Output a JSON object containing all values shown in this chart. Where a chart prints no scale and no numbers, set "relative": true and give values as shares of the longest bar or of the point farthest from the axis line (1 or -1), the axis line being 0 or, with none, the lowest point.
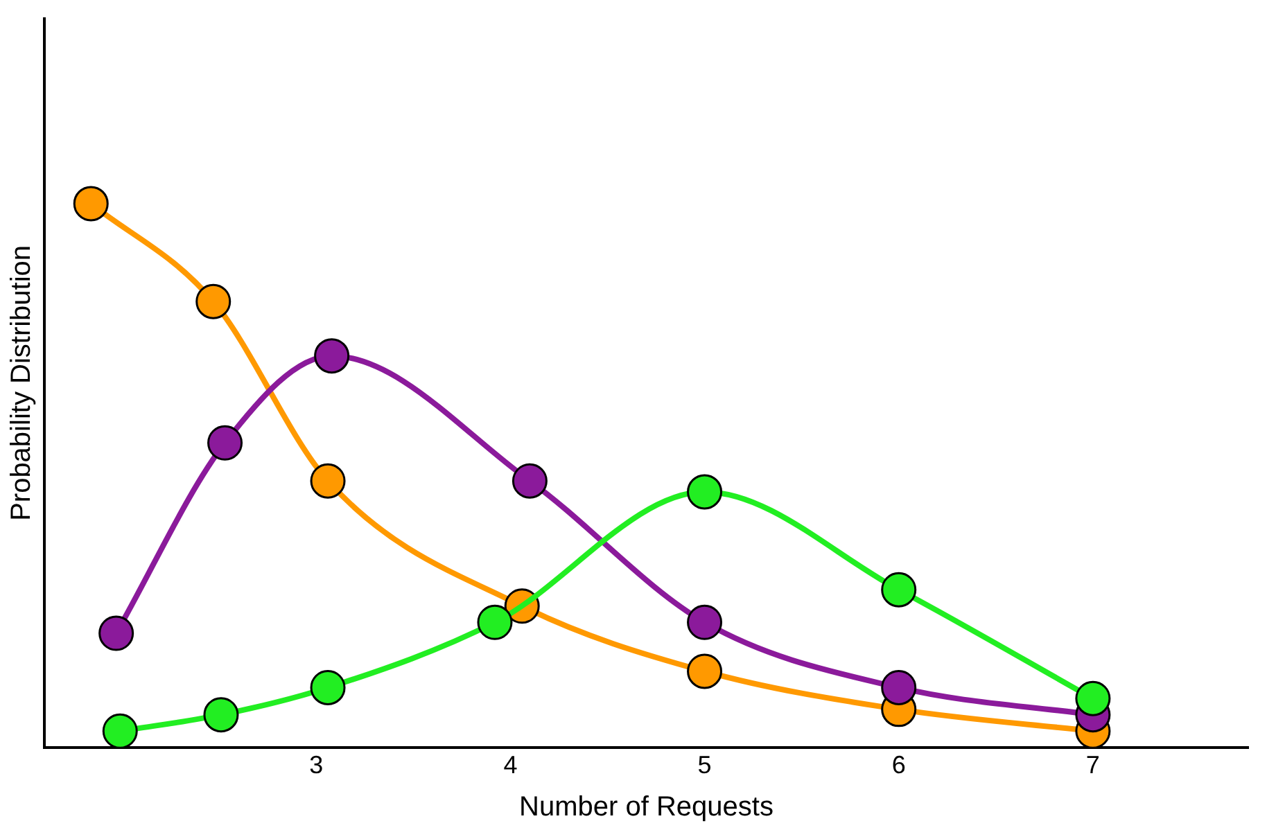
{
  "chart_data": {
    "type": "line",
    "xlabel": "Number of Requests",
    "ylabel": "Probability Distribution",
    "relative": true,
    "xlim": [
      1.6,
      7.8
    ],
    "xticks": [
      3,
      4,
      5,
      6,
      7
    ],
    "tick_labels": "x",
    "grid": false,
    "legend": false,
    "marker": "circle",
    "line_style": "solid",
    "series": [
      {
        "color": "#ff9900",
        "x": [
          1.84,
          2.47,
          3.06,
          4.06,
          5,
          6,
          7
        ],
        "values": [
          1,
          0.82,
          0.49,
          0.26,
          0.14,
          0.07,
          0.03
        ]
      },
      {
        "color": "#8b1a9b",
        "x": [
          1.97,
          2.53,
          3.08,
          4.1,
          5,
          6,
          7
        ],
        "values": [
          0.21,
          0.56,
          0.72,
          0.49,
          0.23,
          0.11,
          0.06
        ]
      },
      {
        "color": "#22ee22",
        "x": [
          1.99,
          2.51,
          3.06,
          3.92,
          5,
          6,
          7
        ],
        "values": [
          0.03,
          0.06,
          0.11,
          0.23,
          0.47,
          0.29,
          0.09
        ]
      }
    ]
  }
}
